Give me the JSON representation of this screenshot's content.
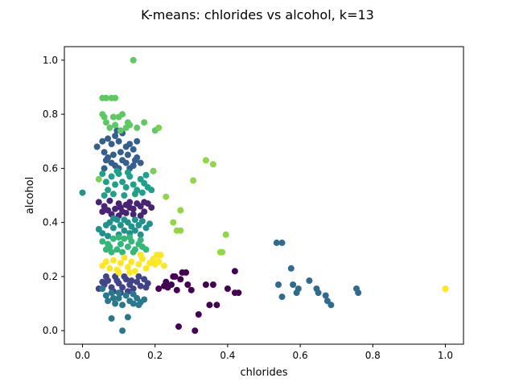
{
  "chart_data": {
    "type": "scatter",
    "title": "K-means: chlorides vs alcohol, k=13",
    "xlabel": "chlorides",
    "ylabel": "alcohol",
    "xlim": [
      -0.05,
      1.05
    ],
    "ylim": [
      -0.05,
      1.05
    ],
    "xticks": [
      "0.0",
      "0.2",
      "0.4",
      "0.6",
      "0.8",
      "1.0"
    ],
    "yticks": [
      "0.0",
      "0.2",
      "0.4",
      "0.6",
      "0.8",
      "1.0"
    ],
    "grid": false,
    "legend": "none",
    "clusters": [
      {
        "id": 0,
        "color": "#440154",
        "points": [
          [
            0.21,
            0.155
          ],
          [
            0.225,
            0.165
          ],
          [
            0.235,
            0.16
          ],
          [
            0.245,
            0.17
          ],
          [
            0.25,
            0.2
          ],
          [
            0.26,
            0.15
          ],
          [
            0.27,
            0.19
          ],
          [
            0.275,
            0.215
          ],
          [
            0.285,
            0.215
          ],
          [
            0.29,
            0.17
          ],
          [
            0.3,
            0.15
          ],
          [
            0.32,
            0.06
          ],
          [
            0.34,
            0.17
          ],
          [
            0.35,
            0.095
          ],
          [
            0.36,
            0.17
          ],
          [
            0.37,
            0.095
          ],
          [
            0.4,
            0.155
          ],
          [
            0.42,
            0.22
          ],
          [
            0.43,
            0.14
          ],
          [
            0.42,
            0.14
          ],
          [
            0.265,
            0.015
          ],
          [
            0.31,
            0.0
          ],
          [
            0.255,
            0.2
          ],
          [
            0.23,
            0.18
          ]
        ]
      },
      {
        "id": 1,
        "color": "#482475",
        "points": [
          [
            0.045,
            0.475
          ],
          [
            0.06,
            0.46
          ],
          [
            0.075,
            0.48
          ],
          [
            0.09,
            0.45
          ],
          [
            0.1,
            0.47
          ],
          [
            0.11,
            0.44
          ],
          [
            0.12,
            0.465
          ],
          [
            0.13,
            0.475
          ],
          [
            0.14,
            0.45
          ],
          [
            0.15,
            0.47
          ],
          [
            0.16,
            0.46
          ],
          [
            0.17,
            0.44
          ],
          [
            0.18,
            0.47
          ],
          [
            0.19,
            0.455
          ],
          [
            0.08,
            0.43
          ],
          [
            0.1,
            0.425
          ],
          [
            0.12,
            0.435
          ],
          [
            0.14,
            0.43
          ],
          [
            0.16,
            0.425
          ],
          [
            0.07,
            0.445
          ],
          [
            0.13,
            0.455
          ],
          [
            0.055,
            0.44
          ],
          [
            0.17,
            0.475
          ],
          [
            0.105,
            0.455
          ]
        ]
      },
      {
        "id": 2,
        "color": "#414487",
        "points": [
          [
            0.045,
            0.155
          ],
          [
            0.06,
            0.17
          ],
          [
            0.07,
            0.185
          ],
          [
            0.08,
            0.16
          ],
          [
            0.09,
            0.2
          ],
          [
            0.1,
            0.175
          ],
          [
            0.11,
            0.16
          ],
          [
            0.12,
            0.19
          ],
          [
            0.13,
            0.17
          ],
          [
            0.14,
            0.155
          ],
          [
            0.15,
            0.18
          ],
          [
            0.16,
            0.165
          ],
          [
            0.17,
            0.19
          ],
          [
            0.175,
            0.16
          ],
          [
            0.18,
            0.175
          ],
          [
            0.085,
            0.145
          ],
          [
            0.105,
            0.14
          ],
          [
            0.125,
            0.145
          ],
          [
            0.065,
            0.2
          ],
          [
            0.095,
            0.185
          ],
          [
            0.155,
            0.2
          ],
          [
            0.115,
            0.2
          ],
          [
            0.135,
            0.185
          ],
          [
            0.055,
            0.18
          ]
        ]
      },
      {
        "id": 3,
        "color": "#355f8d",
        "points": [
          [
            0.04,
            0.68
          ],
          [
            0.055,
            0.7
          ],
          [
            0.06,
            0.66
          ],
          [
            0.07,
            0.71
          ],
          [
            0.08,
            0.69
          ],
          [
            0.09,
            0.72
          ],
          [
            0.1,
            0.7
          ],
          [
            0.11,
            0.73
          ],
          [
            0.12,
            0.68
          ],
          [
            0.13,
            0.69
          ],
          [
            0.14,
            0.67
          ],
          [
            0.15,
            0.7
          ],
          [
            0.07,
            0.64
          ],
          [
            0.08,
            0.62
          ],
          [
            0.09,
            0.61
          ],
          [
            0.1,
            0.6
          ],
          [
            0.11,
            0.63
          ],
          [
            0.12,
            0.62
          ],
          [
            0.13,
            0.6
          ],
          [
            0.14,
            0.61
          ],
          [
            0.15,
            0.64
          ],
          [
            0.16,
            0.62
          ],
          [
            0.065,
            0.63
          ],
          [
            0.085,
            0.65
          ],
          [
            0.105,
            0.66
          ],
          [
            0.125,
            0.65
          ],
          [
            0.145,
            0.63
          ],
          [
            0.095,
            0.74
          ],
          [
            0.06,
            0.6
          ]
        ]
      },
      {
        "id": 4,
        "color": "#2a788e",
        "points": [
          [
            0.055,
            0.155
          ],
          [
            0.065,
            0.13
          ],
          [
            0.07,
            0.11
          ],
          [
            0.08,
            0.14
          ],
          [
            0.09,
            0.1
          ],
          [
            0.1,
            0.12
          ],
          [
            0.11,
            0.095
          ],
          [
            0.12,
            0.13
          ],
          [
            0.13,
            0.11
          ],
          [
            0.14,
            0.1
          ],
          [
            0.15,
            0.12
          ],
          [
            0.16,
            0.105
          ],
          [
            0.17,
            0.115
          ],
          [
            0.08,
            0.045
          ],
          [
            0.11,
            0.0
          ],
          [
            0.125,
            0.05
          ],
          [
            0.1,
            0.14
          ],
          [
            0.14,
            0.135
          ],
          [
            0.085,
            0.12
          ],
          [
            0.155,
            0.095
          ]
        ]
      },
      {
        "id": 5,
        "color": "#2f6b8e",
        "points": [
          [
            0.535,
            0.325
          ],
          [
            0.55,
            0.325
          ],
          [
            0.54,
            0.17
          ],
          [
            0.55,
            0.125
          ],
          [
            0.575,
            0.23
          ],
          [
            0.58,
            0.17
          ],
          [
            0.595,
            0.155
          ],
          [
            0.59,
            0.14
          ],
          [
            0.625,
            0.185
          ],
          [
            0.645,
            0.155
          ],
          [
            0.65,
            0.14
          ],
          [
            0.67,
            0.13
          ],
          [
            0.675,
            0.11
          ],
          [
            0.685,
            0.095
          ],
          [
            0.755,
            0.155
          ],
          [
            0.76,
            0.14
          ]
        ]
      },
      {
        "id": 6,
        "color": "#21918c",
        "points": [
          [
            0.045,
            0.375
          ],
          [
            0.055,
            0.36
          ],
          [
            0.065,
            0.39
          ],
          [
            0.075,
            0.4
          ],
          [
            0.085,
            0.38
          ],
          [
            0.095,
            0.41
          ],
          [
            0.105,
            0.39
          ],
          [
            0.115,
            0.37
          ],
          [
            0.125,
            0.4
          ],
          [
            0.135,
            0.385
          ],
          [
            0.145,
            0.37
          ],
          [
            0.155,
            0.39
          ],
          [
            0.165,
            0.405
          ],
          [
            0.175,
            0.38
          ],
          [
            0.185,
            0.395
          ],
          [
            0.07,
            0.35
          ],
          [
            0.1,
            0.355
          ],
          [
            0.13,
            0.36
          ],
          [
            0.16,
            0.355
          ],
          [
            0.0,
            0.51
          ],
          [
            0.085,
            0.415
          ],
          [
            0.115,
            0.41
          ],
          [
            0.145,
            0.41
          ]
        ]
      },
      {
        "id": 7,
        "color": "#1fa088",
        "points": [
          [
            0.055,
            0.58
          ],
          [
            0.065,
            0.55
          ],
          [
            0.07,
            0.52
          ],
          [
            0.08,
            0.57
          ],
          [
            0.09,
            0.54
          ],
          [
            0.1,
            0.58
          ],
          [
            0.11,
            0.55
          ],
          [
            0.12,
            0.53
          ],
          [
            0.13,
            0.57
          ],
          [
            0.14,
            0.54
          ],
          [
            0.15,
            0.52
          ],
          [
            0.16,
            0.56
          ],
          [
            0.17,
            0.545
          ],
          [
            0.18,
            0.53
          ],
          [
            0.19,
            0.52
          ],
          [
            0.195,
            0.59
          ],
          [
            0.175,
            0.575
          ],
          [
            0.06,
            0.5
          ],
          [
            0.085,
            0.505
          ],
          [
            0.115,
            0.5
          ],
          [
            0.145,
            0.505
          ],
          [
            0.165,
            0.51
          ],
          [
            0.095,
            0.59
          ],
          [
            0.125,
            0.585
          ]
        ]
      },
      {
        "id": 8,
        "color": "#35b779",
        "points": [
          [
            0.055,
            0.33
          ],
          [
            0.065,
            0.3
          ],
          [
            0.075,
            0.31
          ],
          [
            0.085,
            0.34
          ],
          [
            0.095,
            0.3
          ],
          [
            0.105,
            0.32
          ],
          [
            0.115,
            0.34
          ],
          [
            0.125,
            0.31
          ],
          [
            0.135,
            0.33
          ],
          [
            0.145,
            0.3
          ],
          [
            0.155,
            0.32
          ],
          [
            0.165,
            0.31
          ],
          [
            0.175,
            0.3
          ],
          [
            0.08,
            0.29
          ],
          [
            0.11,
            0.29
          ],
          [
            0.14,
            0.29
          ],
          [
            0.1,
            0.345
          ],
          [
            0.13,
            0.345
          ],
          [
            0.07,
            0.32
          ],
          [
            0.16,
            0.335
          ]
        ]
      },
      {
        "id": 9,
        "color": "#5ec962",
        "points": [
          [
            0.055,
            0.86
          ],
          [
            0.065,
            0.86
          ],
          [
            0.08,
            0.86
          ],
          [
            0.09,
            0.86
          ],
          [
            0.055,
            0.8
          ],
          [
            0.06,
            0.79
          ],
          [
            0.065,
            0.77
          ],
          [
            0.075,
            0.75
          ],
          [
            0.09,
            0.76
          ],
          [
            0.1,
            0.79
          ],
          [
            0.11,
            0.8
          ],
          [
            0.125,
            0.77
          ],
          [
            0.13,
            0.76
          ],
          [
            0.14,
            1.0
          ],
          [
            0.15,
            0.75
          ],
          [
            0.17,
            0.77
          ],
          [
            0.2,
            0.74
          ],
          [
            0.085,
            0.79
          ],
          [
            0.105,
            0.74
          ],
          [
            0.12,
            0.75
          ]
        ]
      },
      {
        "id": 10,
        "color": "#90d743",
        "points": [
          [
            0.23,
            0.495
          ],
          [
            0.305,
            0.555
          ],
          [
            0.34,
            0.63
          ],
          [
            0.36,
            0.615
          ],
          [
            0.25,
            0.4
          ],
          [
            0.26,
            0.37
          ],
          [
            0.27,
            0.37
          ],
          [
            0.27,
            0.445
          ],
          [
            0.38,
            0.29
          ],
          [
            0.385,
            0.29
          ],
          [
            0.395,
            0.355
          ]
        ]
      },
      {
        "id": 11,
        "color": "#fde725",
        "points": [
          [
            0.055,
            0.24
          ],
          [
            0.065,
            0.255
          ],
          [
            0.075,
            0.23
          ],
          [
            0.085,
            0.26
          ],
          [
            0.095,
            0.225
          ],
          [
            0.105,
            0.25
          ],
          [
            0.115,
            0.27
          ],
          [
            0.125,
            0.235
          ],
          [
            0.135,
            0.255
          ],
          [
            0.145,
            0.22
          ],
          [
            0.155,
            0.245
          ],
          [
            0.165,
            0.265
          ],
          [
            0.175,
            0.23
          ],
          [
            0.185,
            0.25
          ],
          [
            0.195,
            0.265
          ],
          [
            0.205,
            0.28
          ],
          [
            0.215,
            0.28
          ],
          [
            0.2,
            0.245
          ],
          [
            0.225,
            0.24
          ],
          [
            0.21,
            0.255
          ],
          [
            0.1,
            0.215
          ],
          [
            0.13,
            0.215
          ],
          [
            0.16,
            0.28
          ],
          [
            1.0,
            0.155
          ]
        ]
      },
      {
        "id": 12,
        "color": "#7ad151",
        "points": [
          [
            0.045,
            0.56
          ],
          [
            0.195,
            0.59
          ],
          [
            0.21,
            0.75
          ]
        ]
      }
    ]
  }
}
